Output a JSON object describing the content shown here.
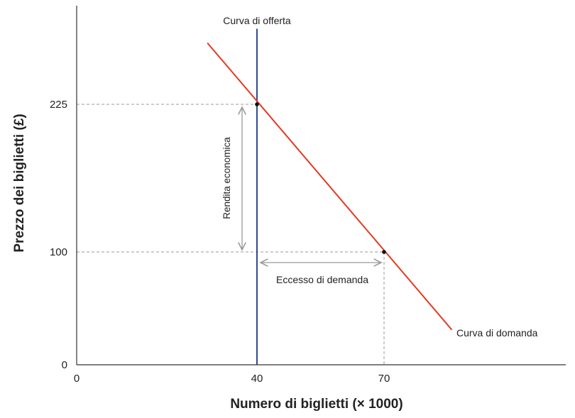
{
  "chart_data": {
    "type": "line",
    "title": "",
    "xlabel": "Numero di biglietti (× 1000)",
    "ylabel": "Prezzo dei biglietti (£)",
    "x_ticks": [
      0,
      40,
      70
    ],
    "y_ticks": [
      0,
      100,
      225
    ],
    "x_tick_labels": [
      "0",
      "40",
      "70"
    ],
    "y_tick_labels": [
      "0",
      "100",
      "225"
    ],
    "xlim": [
      0,
      113
    ],
    "ylim": [
      0,
      308
    ],
    "grid": false,
    "series": [
      {
        "name": "Curva di offerta",
        "color": "#2f4b8f",
        "points": [
          [
            40,
            0
          ],
          [
            40,
            289
          ]
        ]
      },
      {
        "name": "Curva di domanda",
        "color": "#e23a22",
        "points": [
          [
            29,
            277
          ],
          [
            86,
            31
          ]
        ]
      }
    ],
    "points": [
      [
        40,
        225
      ],
      [
        70,
        100
      ]
    ],
    "annotations": {
      "rent": "Rendita economica",
      "excess": "Eccesso di demanda"
    },
    "colors": {
      "guide": "#999999",
      "axis": "#333333"
    }
  }
}
